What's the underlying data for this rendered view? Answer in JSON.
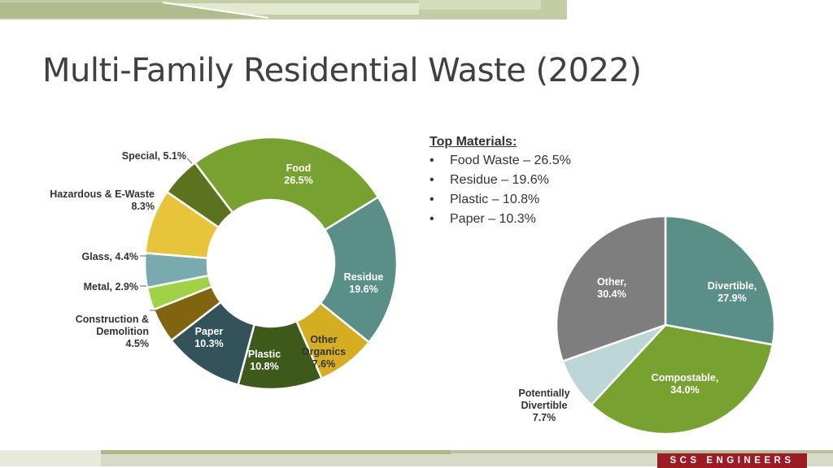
{
  "title": "Multi-Family Residential Waste (2022)",
  "top_materials": {
    "heading": "Top Materials:",
    "items": [
      "Food Waste – 26.5%",
      "Residue – 19.6%",
      "Plastic – 10.8%",
      "Paper – 10.3%"
    ]
  },
  "brand": "SCS ENGINEERS",
  "chart_data": [
    {
      "type": "pie",
      "variant": "donut",
      "categories": [
        "Food",
        "Residue",
        "Other Organics",
        "Plastic",
        "Paper",
        "Construction & Demolition",
        "Metal",
        "Glass",
        "Hazardous & E-Waste",
        "Special"
      ],
      "values": [
        26.5,
        19.6,
        7.6,
        10.8,
        10.3,
        4.5,
        2.9,
        4.4,
        8.3,
        5.1
      ],
      "labels": [
        "Food 26.5%",
        "Residue 19.6%",
        "Other Organics 7.6%",
        "Plastic 10.8%",
        "Paper 10.3%",
        "Construction & Demolition 4.5%",
        "Metal, 2.9%",
        "Glass, 4.4%",
        "Hazardous & E-Waste 8.3%",
        "Special, 5.1%"
      ],
      "colors": [
        "#78a22f",
        "#5a8f87",
        "#d4ad20",
        "#3e5a1b",
        "#34525a",
        "#806410",
        "#a0d246",
        "#79aaae",
        "#e8c43a",
        "#5c721e"
      ]
    },
    {
      "type": "pie",
      "categories": [
        "Divertible",
        "Compostable",
        "Potentially Divertible",
        "Other"
      ],
      "values": [
        27.9,
        34.0,
        7.7,
        30.4
      ],
      "labels": [
        "Divertible, 27.9%",
        "Compostable, 34.0%",
        "Potentially Divertible 7.7%",
        "Other, 30.4%"
      ],
      "colors": [
        "#5a8f87",
        "#78a22f",
        "#bcd6d5",
        "#7e7e7e"
      ]
    }
  ]
}
